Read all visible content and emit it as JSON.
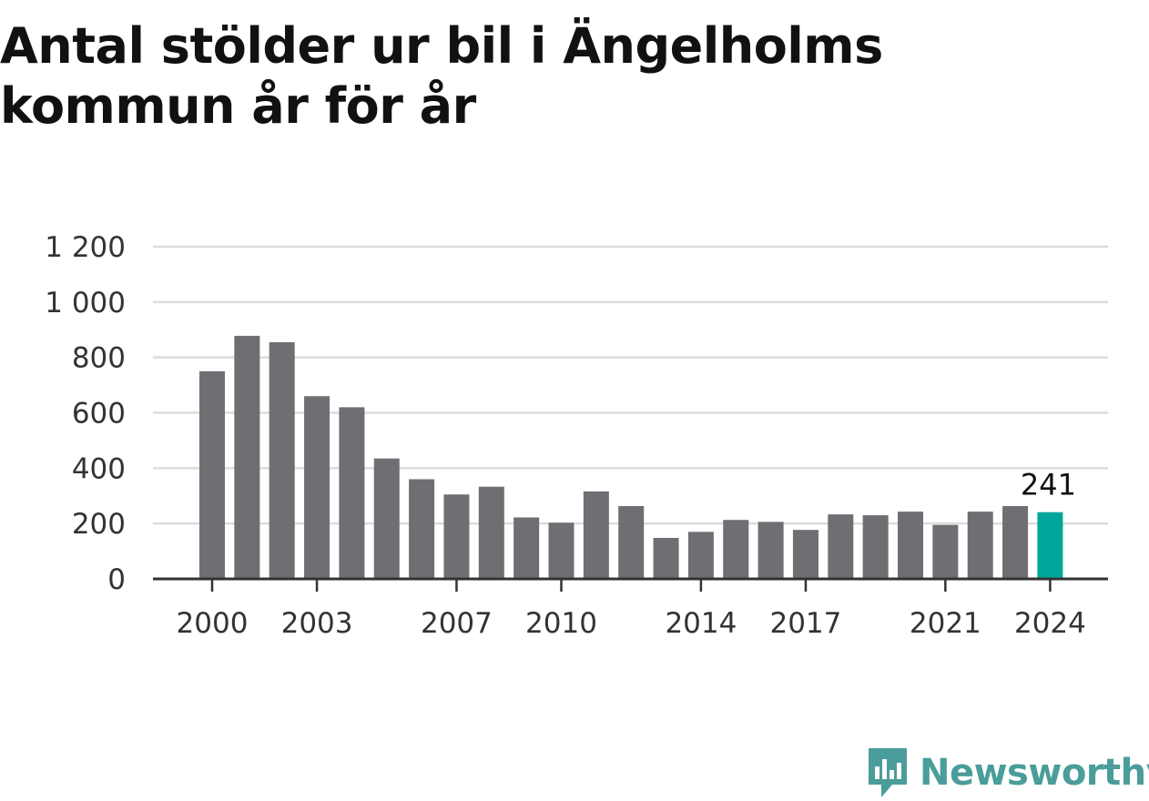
{
  "title": "Antal stölder ur bil i Ängelholms kommun år för år",
  "brand": {
    "name": "Newsworthy",
    "color": "#4a9d9a",
    "icon": "bar-chart-speech-bubble-icon"
  },
  "chart_data": {
    "type": "bar",
    "title": "Antal stölder ur bil i Ängelholms kommun år för år",
    "xlabel": "",
    "ylabel": "",
    "ylim": [
      0,
      1200
    ],
    "yticks": [
      0,
      200,
      400,
      600,
      800,
      1000,
      1200
    ],
    "ytick_labels": [
      "0",
      "200",
      "400",
      "600",
      "800",
      "1 000",
      "1 200"
    ],
    "xtick_labels": [
      "2000",
      "2003",
      "2007",
      "2010",
      "2014",
      "2017",
      "2021",
      "2024"
    ],
    "grid": true,
    "legend": "none",
    "bar_color": "#6f6e73",
    "highlight_color": "#00a59b",
    "highlight_index": 24,
    "categories": [
      "2000",
      "2001",
      "2002",
      "2003",
      "2004",
      "2005",
      "2006",
      "2007",
      "2008",
      "2009",
      "2010",
      "2011",
      "2012",
      "2013",
      "2014",
      "2015",
      "2016",
      "2017",
      "2018",
      "2019",
      "2020",
      "2021",
      "2022",
      "2023",
      "2024"
    ],
    "values": [
      750,
      878,
      855,
      660,
      620,
      435,
      360,
      305,
      333,
      222,
      203,
      316,
      263,
      148,
      170,
      213,
      206,
      177,
      233,
      230,
      243,
      195,
      243,
      263,
      241
    ],
    "annotations": [
      {
        "category": "2024",
        "text": "241"
      }
    ]
  }
}
